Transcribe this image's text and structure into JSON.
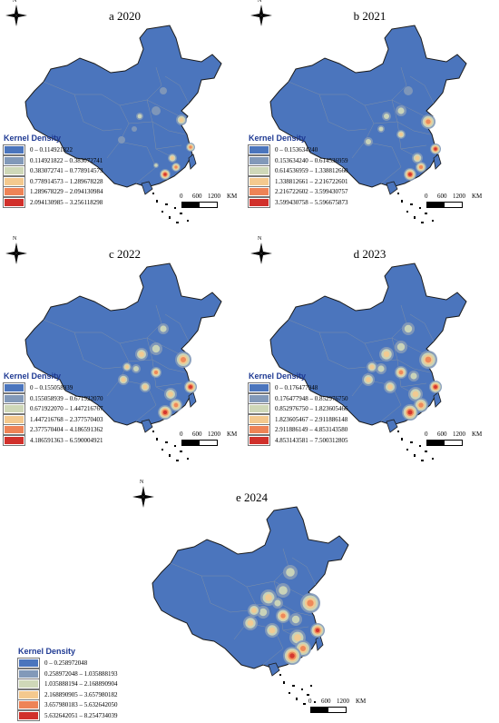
{
  "palette": [
    "#4b75bd",
    "#8299b9",
    "#cfd8b8",
    "#f4c98e",
    "#ee8356",
    "#d1302b"
  ],
  "compass_label": "N",
  "scale": {
    "zero": "0",
    "mid": "600",
    "end": "1200",
    "unit": "KM"
  },
  "panels": [
    {
      "title": "a 2020",
      "legend_title": "Kernel Density",
      "classes": [
        "0 – 0.114921822",
        "0.114921822 – 0.383072741",
        "0.383072741 – 0.778914573",
        "0.778914573 – 1.289678228",
        "1.289678229 – 2.094130984",
        "2.094130985 – 3.256118298"
      ]
    },
    {
      "title": "b 2021",
      "legend_title": "Kernel Density",
      "classes": [
        "0 – 0.153634240",
        "0.153634240 – 0.614536959",
        "0.614536959 – 1.338812660",
        "1.338812661 – 2.216722601",
        "2.216722602 – 3.599430757",
        "3.599430758 – 5.596675873"
      ]
    },
    {
      "title": "c 2022",
      "legend_title": "Kernel Density",
      "classes": [
        "0 – 0.155058939",
        "0.155058939 – 0.671922070",
        "0.671922070 – 1.447216767",
        "1.447216768 – 2.377570403",
        "2.377570404 – 4.186591362",
        "4.186591363 – 6.590004921"
      ]
    },
    {
      "title": "d 2023",
      "legend_title": "Kernel Density",
      "classes": [
        "0 – 0.176477948",
        "0.176477948 – 0.852976750",
        "0.852976750 – 1.823605466",
        "1.823605467 – 2.911886148",
        "2.911886149 – 4.853143580",
        "4.853143581 – 7.500312805"
      ]
    },
    {
      "title": "e 2024",
      "legend_title": "Kernel Density",
      "classes": [
        "0 – 0.258972048",
        "0.258972048 – 1.035888193",
        "1.035888194 – 2.168890904",
        "2.168890905 – 3.657980182",
        "3.657980183 – 5.632642050",
        "5.632642051 – 8.254734039"
      ]
    }
  ]
}
